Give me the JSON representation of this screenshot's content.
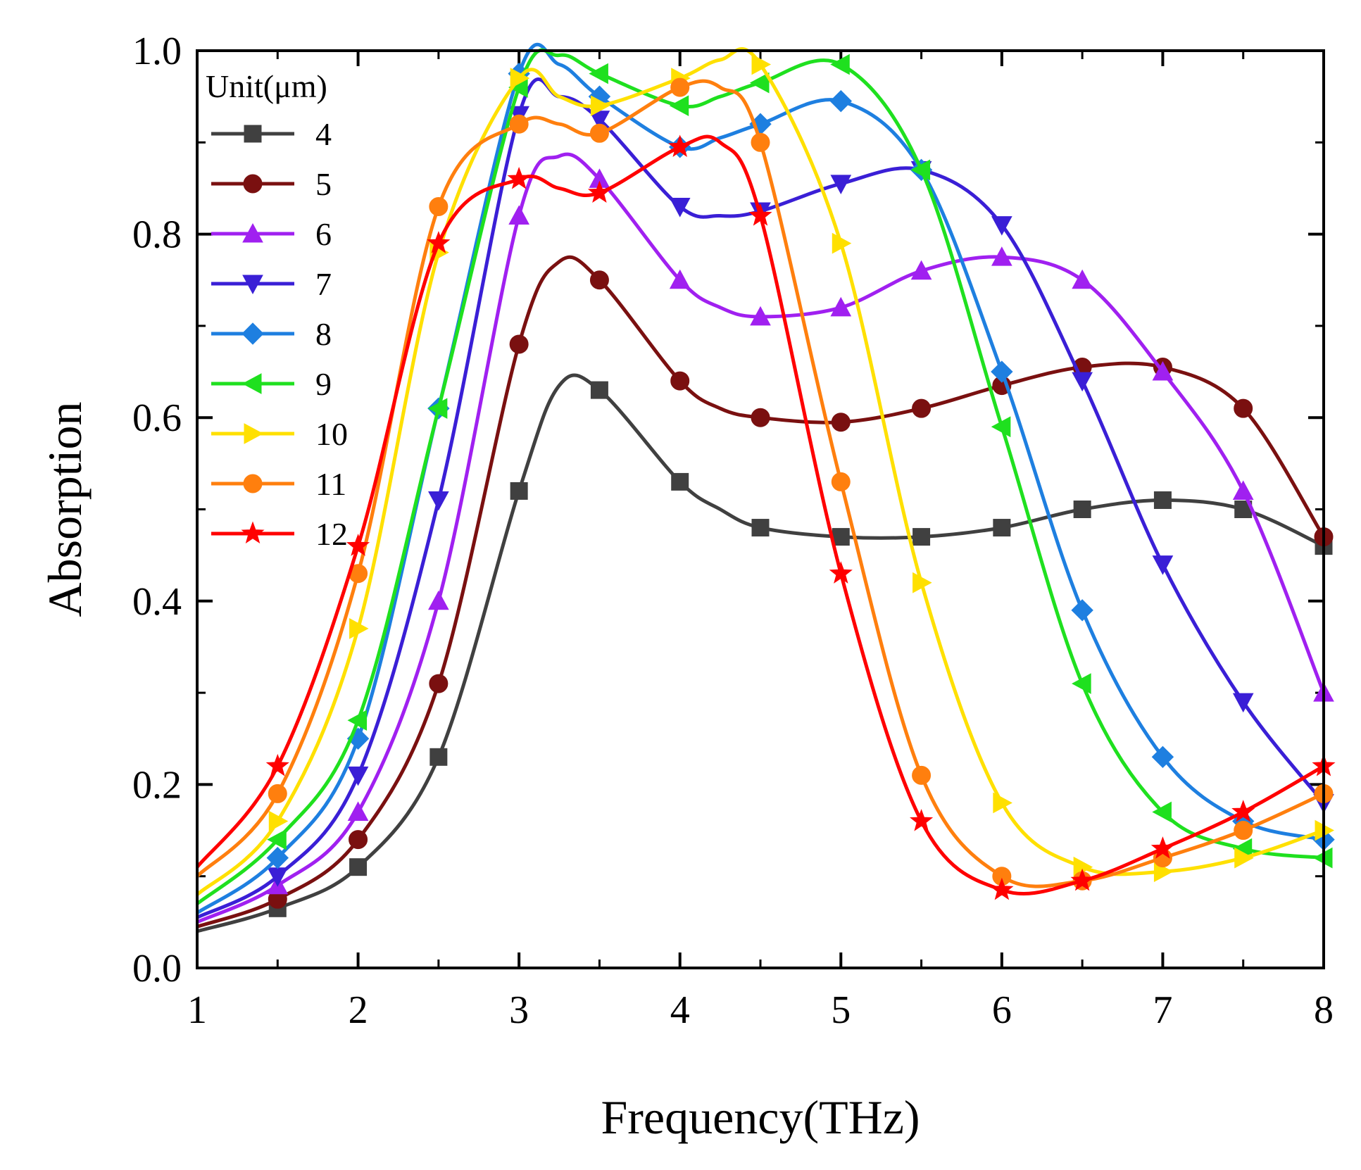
{
  "chart_data": {
    "type": "line",
    "title": "",
    "xlabel": "Frequency(THz)",
    "ylabel": "Absorption",
    "xlim": [
      1,
      8
    ],
    "ylim": [
      0,
      1.0
    ],
    "xticks": [
      "1",
      "2",
      "3",
      "4",
      "5",
      "6",
      "7",
      "8"
    ],
    "yticks": [
      "0.0",
      "0.2",
      "0.4",
      "0.6",
      "0.8",
      "1.0"
    ],
    "legend": {
      "title": "Unit(μm)",
      "placement": "top-left"
    },
    "x": [
      1.0,
      1.5,
      2.0,
      2.5,
      3.0,
      3.25,
      3.5,
      4.0,
      4.25,
      4.5,
      5.0,
      5.5,
      6.0,
      6.5,
      7.0,
      7.5,
      8.0
    ],
    "series": [
      {
        "name": "4",
        "color": "#404040",
        "marker": "square",
        "values": [
          0.04,
          0.065,
          0.11,
          0.23,
          0.52,
          0.635,
          0.63,
          0.53,
          0.5,
          0.48,
          0.47,
          0.47,
          0.48,
          0.5,
          0.51,
          0.5,
          0.46
        ]
      },
      {
        "name": "5",
        "color": "#7a1010",
        "marker": "circle",
        "values": [
          0.045,
          0.075,
          0.14,
          0.31,
          0.68,
          0.77,
          0.75,
          0.64,
          0.61,
          0.6,
          0.595,
          0.61,
          0.635,
          0.655,
          0.655,
          0.61,
          0.47
        ]
      },
      {
        "name": "6",
        "color": "#a020f0",
        "marker": "triangle-up",
        "values": [
          0.05,
          0.09,
          0.17,
          0.4,
          0.82,
          0.885,
          0.86,
          0.75,
          0.72,
          0.71,
          0.72,
          0.76,
          0.775,
          0.75,
          0.65,
          0.52,
          0.3
        ]
      },
      {
        "name": "7",
        "color": "#3a1fd6",
        "marker": "triangle-down",
        "values": [
          0.055,
          0.1,
          0.21,
          0.51,
          0.93,
          0.95,
          0.925,
          0.83,
          0.82,
          0.825,
          0.855,
          0.87,
          0.81,
          0.64,
          0.44,
          0.29,
          0.18
        ]
      },
      {
        "name": "8",
        "color": "#1e7fe0",
        "marker": "diamond",
        "values": [
          0.06,
          0.12,
          0.25,
          0.61,
          0.975,
          0.985,
          0.95,
          0.895,
          0.905,
          0.92,
          0.945,
          0.87,
          0.65,
          0.39,
          0.23,
          0.16,
          0.14
        ]
      },
      {
        "name": "9",
        "color": "#1fe01f",
        "marker": "triangle-left",
        "values": [
          0.07,
          0.14,
          0.27,
          0.61,
          0.96,
          0.995,
          0.975,
          0.94,
          0.95,
          0.965,
          0.985,
          0.87,
          0.59,
          0.31,
          0.17,
          0.13,
          0.12
        ]
      },
      {
        "name": "10",
        "color": "#ffe000",
        "marker": "triangle-right",
        "values": [
          0.08,
          0.16,
          0.37,
          0.78,
          0.97,
          0.95,
          0.94,
          0.97,
          0.99,
          0.985,
          0.79,
          0.42,
          0.18,
          0.11,
          0.105,
          0.12,
          0.15
        ]
      },
      {
        "name": "11",
        "color": "#ff7f0e",
        "marker": "circle",
        "values": [
          0.1,
          0.19,
          0.43,
          0.83,
          0.92,
          0.92,
          0.91,
          0.96,
          0.96,
          0.9,
          0.53,
          0.21,
          0.1,
          0.095,
          0.12,
          0.15,
          0.19
        ]
      },
      {
        "name": "12",
        "color": "#ff0000",
        "marker": "star",
        "values": [
          0.11,
          0.22,
          0.46,
          0.79,
          0.86,
          0.85,
          0.845,
          0.895,
          0.9,
          0.82,
          0.43,
          0.16,
          0.085,
          0.095,
          0.13,
          0.17,
          0.22
        ]
      }
    ]
  }
}
